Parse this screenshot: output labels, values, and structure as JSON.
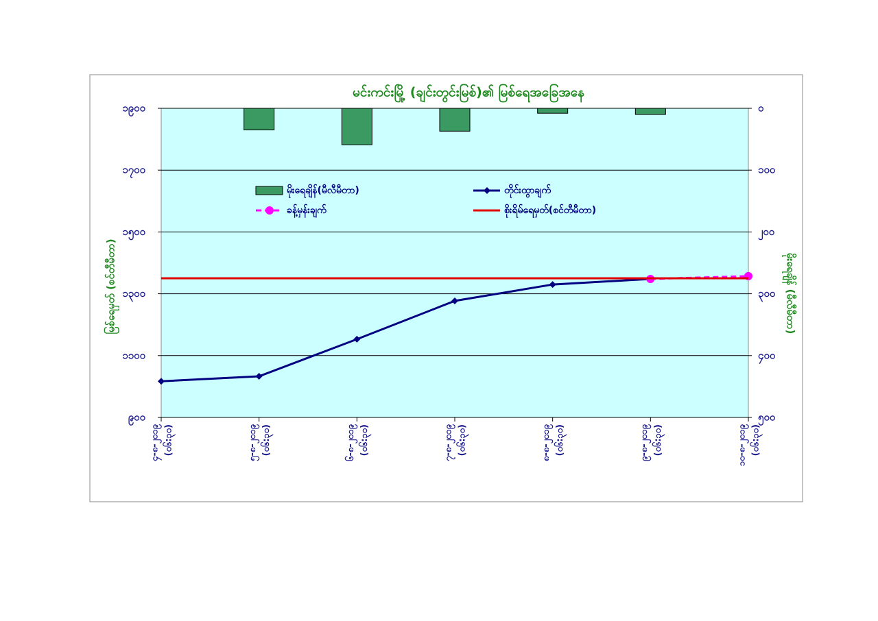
{
  "chart_data": {
    "type": "combo",
    "title": "မင်းကင်းမြို့ (ချင်းတွင်းမြစ်)၏ မြစ်ရေအခြေအနေ",
    "y_label": "မြစ်ရေမှတ် (စင်တီမီတာ)",
    "y2_label": "မိုးရေချိန် (မီလီမီတာ)",
    "categories": [
      [
        "၄-၈-၂၀၁၉",
        "(၀၆:၃၀)"
      ],
      [
        "၅-၈-၂၀၁၉",
        "(၀၆:၃၀)"
      ],
      [
        "၆-၈-၂၀၁၉",
        "(၀၆:၃၀)"
      ],
      [
        "၇-၈-၂၀၁၉",
        "(၀၆:၃၀)"
      ],
      [
        "၈-၈-၂၀၁၉",
        "(၀၆:၃၀)"
      ],
      [
        "၉-၈-၂၀၁၉",
        "(၀၆:၃၀)"
      ],
      [
        "၁၀-၈-၂၀၁၉",
        "(၀၆:၃၀)"
      ]
    ],
    "series": [
      {
        "name": "မိုးရေချိန်(မီလီမီတာ)",
        "kind": "bar",
        "axis": "y2",
        "color": "#3a9a62",
        "values": [
          null,
          35,
          59,
          37,
          8,
          10,
          null
        ]
      },
      {
        "name": "တိုင်းထွာချက်",
        "kind": "line",
        "color": "#000080",
        "marker": "diamond",
        "values": [
          1017,
          1033,
          1153,
          1277,
          1330,
          1348,
          null
        ]
      },
      {
        "name": "ခန့်မှန်းချက်",
        "kind": "line",
        "color": "#ff00ff",
        "marker": "circle",
        "dashed": true,
        "values": [
          null,
          null,
          null,
          null,
          null,
          1348,
          1357
        ]
      },
      {
        "name": "စိုးရိမ်ရေမှတ်(စင်တီမီတာ)",
        "kind": "line",
        "color": "#e00000",
        "values": [
          1350,
          1350,
          1350,
          1350,
          1350,
          1350,
          1350
        ]
      }
    ],
    "ylim": [
      900,
      1900
    ],
    "yticks": [
      {
        "value": 900,
        "label": "၉၀၀"
      },
      {
        "value": 1100,
        "label": "၁၁၀၀"
      },
      {
        "value": 1300,
        "label": "၁၃၀၀"
      },
      {
        "value": 1500,
        "label": "၁၅၀၀"
      },
      {
        "value": 1700,
        "label": "၁၇၀၀"
      },
      {
        "value": 1900,
        "label": "၁၉၀၀"
      }
    ],
    "y2lim": [
      0,
      500
    ],
    "y2_inverted": true,
    "y2ticks": [
      {
        "value": 0,
        "label": "၀"
      },
      {
        "value": 100,
        "label": "၁၀၀"
      },
      {
        "value": 200,
        "label": "၂၀၀"
      },
      {
        "value": 300,
        "label": "၃၀၀"
      },
      {
        "value": 400,
        "label": "၄၀၀"
      },
      {
        "value": 500,
        "label": "၅၀၀"
      }
    ],
    "grid": true,
    "background": "#ccffff"
  }
}
